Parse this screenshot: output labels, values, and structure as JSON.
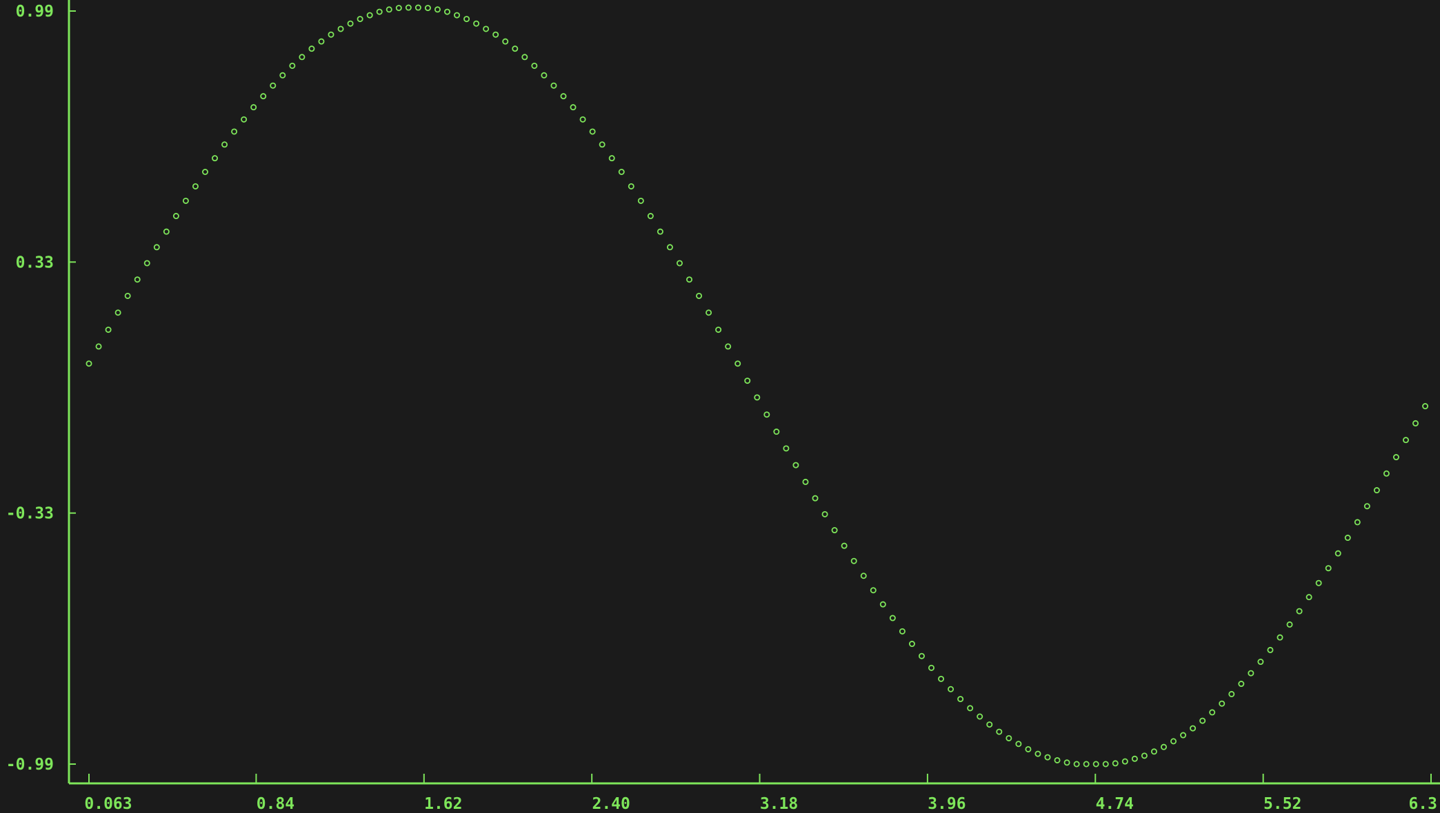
{
  "chart_data": {
    "type": "scatter",
    "title": "",
    "xlabel": "",
    "ylabel": "",
    "xlim": [
      0.063,
      6.3
    ],
    "ylim": [
      -0.99,
      0.99
    ],
    "grid": false,
    "legend": "none",
    "x_ticks": [
      "0.063",
      "0.84",
      "1.62",
      "2.40",
      "3.18",
      "3.96",
      "4.74",
      "5.52",
      "6.3"
    ],
    "y_ticks": [
      "0.99",
      "0.33",
      "-0.33",
      "-0.99"
    ],
    "marker": "o",
    "colors": {
      "background": "#1b1b1b",
      "axis": "#7ee65a",
      "marker": "#7ee65a",
      "text": "#7ee65a"
    },
    "series": [
      {
        "x": [
          0.063,
          0.108,
          0.153,
          0.198,
          0.243,
          0.288,
          0.333,
          0.378,
          0.423,
          0.468,
          0.513,
          0.558,
          0.603,
          0.648,
          0.693,
          0.738,
          0.783,
          0.828,
          0.873,
          0.918,
          0.963,
          1.008,
          1.053,
          1.098,
          1.143,
          1.188,
          1.233,
          1.278,
          1.323,
          1.368,
          1.413,
          1.458,
          1.503,
          1.548,
          1.593,
          1.638,
          1.683,
          1.728,
          1.773,
          1.818,
          1.863,
          1.908,
          1.953,
          1.998,
          2.043,
          2.088,
          2.133,
          2.178,
          2.223,
          2.268,
          2.313,
          2.358,
          2.403,
          2.448,
          2.493,
          2.538,
          2.583,
          2.628,
          2.673,
          2.718,
          2.763,
          2.808,
          2.853,
          2.898,
          2.943,
          2.988,
          3.033,
          3.078,
          3.123,
          3.168,
          3.213,
          3.258,
          3.303,
          3.348,
          3.393,
          3.438,
          3.483,
          3.528,
          3.573,
          3.618,
          3.663,
          3.708,
          3.753,
          3.798,
          3.843,
          3.888,
          3.933,
          3.978,
          4.023,
          4.068,
          4.113,
          4.158,
          4.203,
          4.248,
          4.293,
          4.338,
          4.383,
          4.428,
          4.473,
          4.518,
          4.563,
          4.608,
          4.653,
          4.698,
          4.743,
          4.788,
          4.833,
          4.878,
          4.923,
          4.968,
          5.013,
          5.058,
          5.103,
          5.148,
          5.193,
          5.238,
          5.283,
          5.328,
          5.373,
          5.418,
          5.463,
          5.508,
          5.553,
          5.598,
          5.643,
          5.688,
          5.733,
          5.778,
          5.823,
          5.868,
          5.913,
          5.958,
          6.003,
          6.048,
          6.093,
          6.138,
          6.183,
          6.228,
          6.273
        ],
        "y": [
          0.063,
          0.108,
          0.152,
          0.197,
          0.241,
          0.284,
          0.327,
          0.369,
          0.41,
          0.451,
          0.491,
          0.529,
          0.567,
          0.603,
          0.639,
          0.673,
          0.705,
          0.737,
          0.766,
          0.794,
          0.821,
          0.846,
          0.869,
          0.891,
          0.91,
          0.928,
          0.943,
          0.957,
          0.969,
          0.979,
          0.988,
          0.994,
          0.998,
          0.999,
          0.999,
          0.998,
          0.994,
          0.988,
          0.979,
          0.969,
          0.957,
          0.943,
          0.928,
          0.91,
          0.891,
          0.869,
          0.846,
          0.821,
          0.794,
          0.766,
          0.737,
          0.705,
          0.673,
          0.639,
          0.603,
          0.567,
          0.529,
          0.491,
          0.451,
          0.41,
          0.369,
          0.327,
          0.284,
          0.241,
          0.197,
          0.152,
          0.108,
          0.063,
          0.018,
          -0.026,
          -0.071,
          -0.116,
          -0.16,
          -0.204,
          -0.248,
          -0.291,
          -0.333,
          -0.375,
          -0.416,
          -0.456,
          -0.495,
          -0.533,
          -0.57,
          -0.606,
          -0.641,
          -0.674,
          -0.706,
          -0.737,
          -0.766,
          -0.793,
          -0.819,
          -0.843,
          -0.865,
          -0.886,
          -0.905,
          -0.922,
          -0.937,
          -0.951,
          -0.963,
          -0.972,
          -0.98,
          -0.986,
          -0.99,
          -0.99,
          -0.99,
          -0.99,
          -0.988,
          -0.983,
          -0.976,
          -0.968,
          -0.957,
          -0.945,
          -0.93,
          -0.914,
          -0.896,
          -0.876,
          -0.854,
          -0.831,
          -0.806,
          -0.779,
          -0.751,
          -0.721,
          -0.69,
          -0.657,
          -0.623,
          -0.588,
          -0.551,
          -0.514,
          -0.475,
          -0.436,
          -0.395,
          -0.354,
          -0.312,
          -0.27,
          -0.226,
          -0.183,
          -0.138,
          -0.094,
          -0.049
        ]
      }
    ]
  }
}
